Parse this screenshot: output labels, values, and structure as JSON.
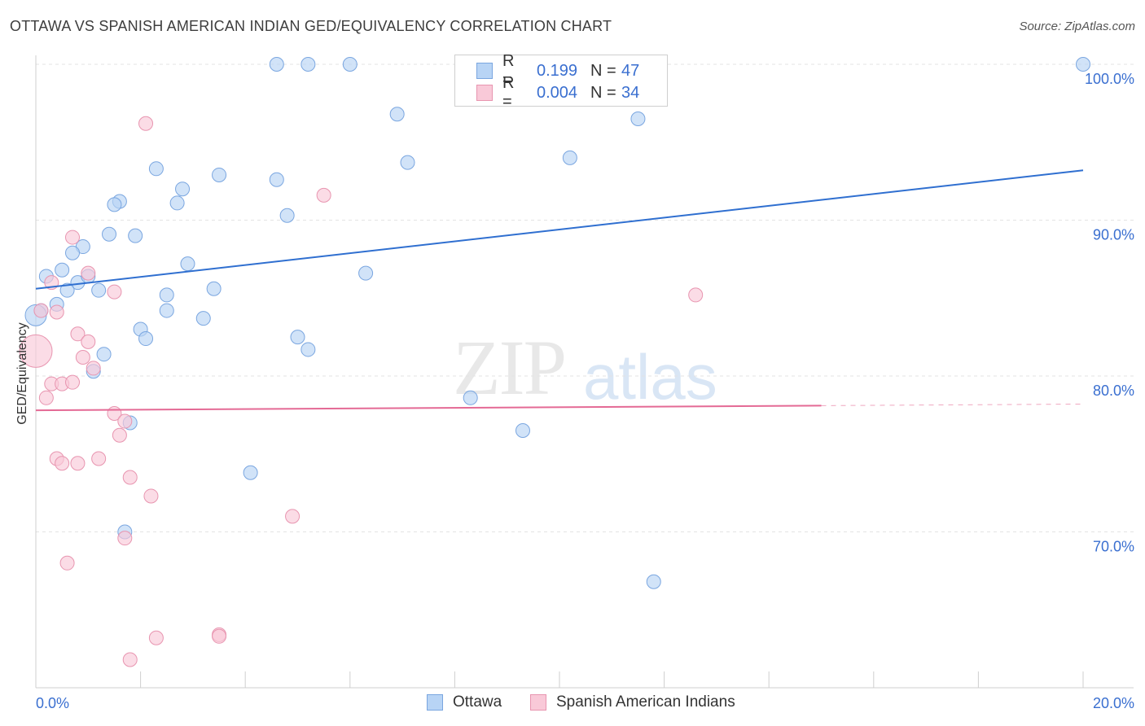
{
  "header": {
    "title": "OTTAWA VS SPANISH AMERICAN INDIAN GED/EQUIVALENCY CORRELATION CHART",
    "source": "Source: ZipAtlas.com"
  },
  "watermark": {
    "zip": "ZIP",
    "atlas": "atlas"
  },
  "legend": {
    "r_label": "R =",
    "n_label": "N =",
    "series": [
      {
        "r": "0.199",
        "n": "47"
      },
      {
        "r": "0.004",
        "n": "34"
      }
    ]
  },
  "colors": {
    "ottawa_fill": "#b8d4f5",
    "ottawa_stroke": "#7aa6e0",
    "ottawa_line": "#2f6fd0",
    "spanish_fill": "#f9c9d8",
    "spanish_stroke": "#e895b0",
    "spanish_line": "#e46a95",
    "tick_label": "#3a6fd0"
  },
  "chart_data": {
    "type": "scatter",
    "title": "OTTAWA VS SPANISH AMERICAN INDIAN GED/EQUIVALENCY CORRELATION CHART",
    "xlabel": "",
    "ylabel": "GED/Equivalency",
    "xlim": [
      0,
      20
    ],
    "ylim": [
      60,
      100
    ],
    "x_tick_labels": [
      {
        "value": 0,
        "label": "0.0%"
      },
      {
        "value": 20,
        "label": "20.0%"
      }
    ],
    "y_tick_labels": [
      {
        "value": 100,
        "label": "100.0%"
      },
      {
        "value": 90,
        "label": "90.0%"
      },
      {
        "value": 80,
        "label": "80.0%"
      },
      {
        "value": 70,
        "label": "70.0%"
      }
    ],
    "series": [
      {
        "name": "Ottawa",
        "r": 0.199,
        "n": 47,
        "trend": {
          "x0": 0,
          "y0": 85.6,
          "x1": 20,
          "y1": 93.2
        },
        "points": [
          [
            4.6,
            100
          ],
          [
            5.2,
            100
          ],
          [
            6.0,
            100
          ],
          [
            20.0,
            100
          ],
          [
            6.9,
            96.8
          ],
          [
            11.5,
            96.5
          ],
          [
            7.1,
            93.7
          ],
          [
            10.2,
            94.0
          ],
          [
            2.3,
            93.3
          ],
          [
            3.5,
            92.9
          ],
          [
            4.6,
            92.6
          ],
          [
            2.8,
            92.0
          ],
          [
            1.6,
            91.2
          ],
          [
            1.5,
            91.0
          ],
          [
            2.7,
            91.1
          ],
          [
            4.8,
            90.3
          ],
          [
            1.4,
            89.1
          ],
          [
            1.9,
            89.0
          ],
          [
            0.9,
            88.3
          ],
          [
            0.7,
            87.9
          ],
          [
            2.9,
            87.2
          ],
          [
            0.5,
            86.8
          ],
          [
            0.2,
            86.4
          ],
          [
            6.3,
            86.6
          ],
          [
            0.8,
            86.0
          ],
          [
            1.0,
            86.4
          ],
          [
            0.6,
            85.5
          ],
          [
            1.2,
            85.5
          ],
          [
            3.4,
            85.6
          ],
          [
            2.5,
            85.2
          ],
          [
            0.4,
            84.6
          ],
          [
            0.1,
            84.2
          ],
          [
            2.5,
            84.2
          ],
          [
            3.2,
            83.7
          ],
          [
            0.0,
            83.9
          ],
          [
            2.0,
            83.0
          ],
          [
            2.1,
            82.4
          ],
          [
            5.0,
            82.5
          ],
          [
            5.2,
            81.7
          ],
          [
            1.3,
            81.4
          ],
          [
            1.1,
            80.3
          ],
          [
            8.3,
            78.6
          ],
          [
            1.8,
            77.0
          ],
          [
            9.3,
            76.5
          ],
          [
            4.1,
            73.8
          ],
          [
            1.7,
            70.0
          ],
          [
            11.8,
            66.8
          ]
        ]
      },
      {
        "name": "Spanish American Indians",
        "r": 0.004,
        "n": 34,
        "trend": {
          "x0": 0,
          "y0": 77.8,
          "x1": 15,
          "y1": 78.1,
          "dashed_to_x": 20
        },
        "points": [
          [
            2.1,
            96.2
          ],
          [
            5.5,
            91.6
          ],
          [
            0.7,
            88.9
          ],
          [
            1.0,
            86.6
          ],
          [
            0.3,
            86.0
          ],
          [
            1.5,
            85.4
          ],
          [
            12.6,
            85.2
          ],
          [
            0.1,
            84.2
          ],
          [
            0.4,
            84.1
          ],
          [
            0.8,
            82.7
          ],
          [
            1.0,
            82.2
          ],
          [
            0.9,
            81.2
          ],
          [
            0.0,
            81.6
          ],
          [
            1.1,
            80.5
          ],
          [
            0.3,
            79.5
          ],
          [
            0.5,
            79.5
          ],
          [
            0.7,
            79.6
          ],
          [
            0.2,
            78.6
          ],
          [
            1.5,
            77.6
          ],
          [
            1.7,
            77.1
          ],
          [
            1.6,
            76.2
          ],
          [
            0.4,
            74.7
          ],
          [
            0.5,
            74.4
          ],
          [
            0.8,
            74.4
          ],
          [
            1.2,
            74.7
          ],
          [
            1.8,
            73.5
          ],
          [
            2.2,
            72.3
          ],
          [
            4.9,
            71.0
          ],
          [
            1.7,
            69.6
          ],
          [
            0.6,
            68.0
          ],
          [
            3.5,
            63.4
          ],
          [
            3.5,
            63.3
          ],
          [
            2.3,
            63.2
          ],
          [
            1.8,
            61.8
          ]
        ]
      }
    ],
    "legend": [
      "Ottawa",
      "Spanish American Indians"
    ],
    "grid": true
  }
}
